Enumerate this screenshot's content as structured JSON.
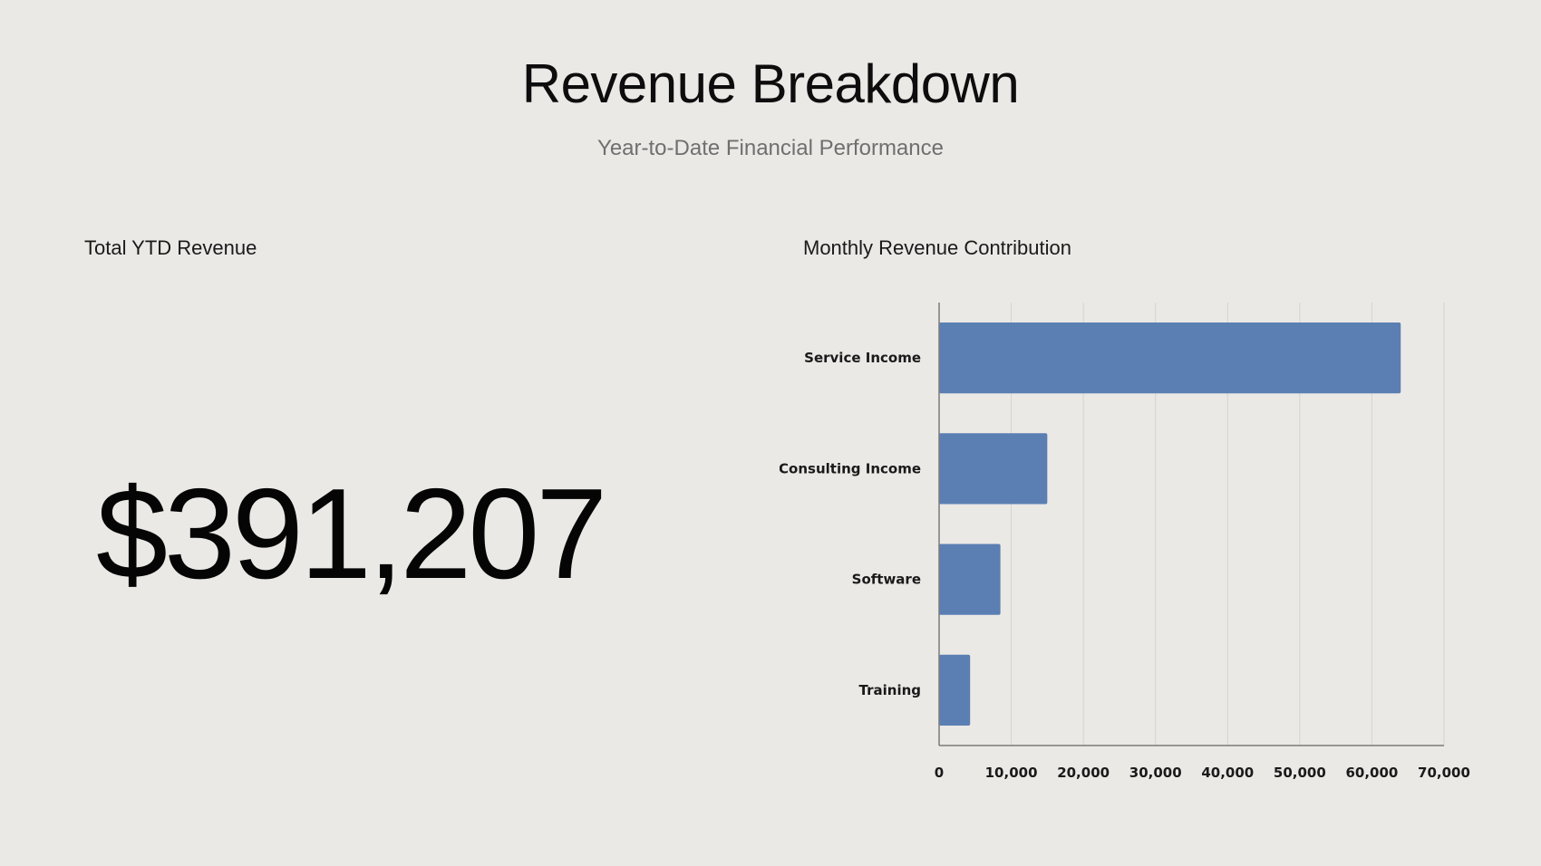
{
  "header": {
    "title": "Revenue Breakdown",
    "subtitle": "Year-to-Date Financial Performance"
  },
  "kpi": {
    "label": "Total YTD Revenue",
    "value": "$391,207"
  },
  "chart_panel": {
    "title": "Monthly Revenue Contribution"
  },
  "colors": {
    "background": "#ebe9e6",
    "bar": "#5b7fb3",
    "grid": "#d6d4d1",
    "axis": "#7a7a7a"
  },
  "chart_data": {
    "type": "bar",
    "orientation": "horizontal",
    "title": "Monthly Revenue Contribution",
    "categories": [
      "Service Income",
      "Consulting Income",
      "Software",
      "Training"
    ],
    "values": [
      64000,
      15000,
      8500,
      4300
    ],
    "xlim": [
      0,
      70000
    ],
    "xticks": [
      0,
      10000,
      20000,
      30000,
      40000,
      50000,
      60000,
      70000
    ],
    "xtick_labels": [
      "0",
      "10,000",
      "20,000",
      "30,000",
      "40,000",
      "50,000",
      "60,000",
      "70,000"
    ],
    "xlabel": "",
    "ylabel": "",
    "grid": true,
    "legend": "none"
  }
}
